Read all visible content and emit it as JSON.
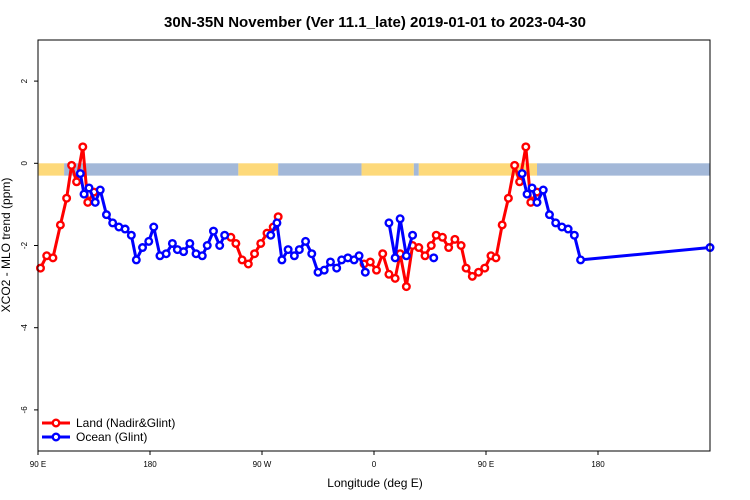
{
  "chart_data": {
    "type": "line",
    "title": "30N-35N November (Ver 11.1_late)   2019-01-01 to 2023-04-30",
    "xlabel": "Longitude (deg E)",
    "ylabel": "XCO2 - MLO trend (ppm)",
    "xlim": [
      90,
      630
    ],
    "ylim": [
      -7.0,
      3.0
    ],
    "x_ticks": [
      {
        "value": 90,
        "label": "90 E"
      },
      {
        "value": 180,
        "label": "180"
      },
      {
        "value": 270,
        "label": "90 W"
      },
      {
        "value": 360,
        "label": "0"
      },
      {
        "value": 450,
        "label": "90 E"
      },
      {
        "value": 540,
        "label": "180"
      }
    ],
    "y_ticks": [
      {
        "value": 2,
        "label": "2"
      },
      {
        "value": 0,
        "label": "0"
      },
      {
        "value": -2,
        "label": "-2"
      },
      {
        "value": -4,
        "label": "-4"
      },
      {
        "value": -6,
        "label": "-6"
      }
    ],
    "grid": false,
    "legend_position": "bottom-left",
    "land_ocean_strip": {
      "y_range": [
        -0.3,
        0.0
      ],
      "land_color": "#fdd97a",
      "ocean_color": "#a3b8d8",
      "segments": [
        {
          "type": "ocean",
          "x0": 90,
          "x1": 90.5
        },
        {
          "type": "land",
          "x0": 90.5,
          "x1": 111
        },
        {
          "type": "ocean",
          "x0": 111,
          "x1": 251
        },
        {
          "type": "land",
          "x0": 251,
          "x1": 283
        },
        {
          "type": "ocean",
          "x0": 283,
          "x1": 350
        },
        {
          "type": "land",
          "x0": 350,
          "x1": 392
        },
        {
          "type": "ocean",
          "x0": 392,
          "x1": 396
        },
        {
          "type": "land",
          "x0": 396,
          "x1": 491
        },
        {
          "type": "ocean",
          "x0": 491,
          "x1": 630
        }
      ]
    },
    "series": [
      {
        "name": "Land (Nadir&Glint)",
        "color": "#ff0000",
        "segments": [
          [
            [
              92,
              -2.55
            ],
            [
              97,
              -2.25
            ],
            [
              102,
              -2.3
            ],
            [
              108,
              -1.5
            ],
            [
              113,
              -0.85
            ],
            [
              117,
              -0.05
            ],
            [
              121,
              -0.45
            ],
            [
              126,
              0.4
            ],
            [
              130,
              -0.95
            ],
            [
              135,
              -0.7
            ]
          ],
          [
            [
              245,
              -1.8
            ],
            [
              249,
              -1.95
            ],
            [
              254,
              -2.35
            ],
            [
              259,
              -2.45
            ],
            [
              264,
              -2.2
            ],
            [
              269,
              -1.95
            ],
            [
              274,
              -1.7
            ],
            [
              279,
              -1.55
            ],
            [
              283,
              -1.3
            ]
          ],
          [
            [
              352,
              -2.45
            ],
            [
              357,
              -2.4
            ],
            [
              362,
              -2.6
            ],
            [
              367,
              -2.2
            ],
            [
              372,
              -2.7
            ],
            [
              377,
              -2.8
            ],
            [
              381,
              -2.2
            ],
            [
              386,
              -3.0
            ],
            [
              391,
              -2.0
            ],
            [
              396,
              -2.05
            ],
            [
              401,
              -2.25
            ],
            [
              406,
              -2.0
            ],
            [
              410,
              -1.75
            ],
            [
              415,
              -1.8
            ],
            [
              420,
              -2.05
            ],
            [
              425,
              -1.85
            ],
            [
              430,
              -2.0
            ],
            [
              434,
              -2.55
            ],
            [
              439,
              -2.75
            ],
            [
              444,
              -2.65
            ],
            [
              449,
              -2.55
            ],
            [
              454,
              -2.25
            ],
            [
              458,
              -2.3
            ],
            [
              463,
              -1.5
            ],
            [
              468,
              -0.85
            ],
            [
              473,
              -0.05
            ],
            [
              477,
              -0.45
            ],
            [
              482,
              0.4
            ],
            [
              486,
              -0.95
            ],
            [
              491,
              -0.7
            ]
          ]
        ]
      },
      {
        "name": "Ocean (Glint)",
        "color": "#0000ff",
        "segments": [
          [
            [
              124,
              -0.25
            ],
            [
              127,
              -0.75
            ],
            [
              131,
              -0.6
            ],
            [
              136,
              -0.95
            ],
            [
              140,
              -0.65
            ],
            [
              145,
              -1.25
            ],
            [
              150,
              -1.45
            ],
            [
              155,
              -1.55
            ],
            [
              160,
              -1.6
            ],
            [
              165,
              -1.75
            ],
            [
              169,
              -2.35
            ],
            [
              174,
              -2.05
            ],
            [
              179,
              -1.9
            ],
            [
              183,
              -1.55
            ],
            [
              188,
              -2.25
            ],
            [
              193,
              -2.2
            ],
            [
              198,
              -1.95
            ],
            [
              202,
              -2.1
            ],
            [
              207,
              -2.15
            ],
            [
              212,
              -1.95
            ],
            [
              217,
              -2.2
            ],
            [
              222,
              -2.25
            ],
            [
              226,
              -2.0
            ],
            [
              231,
              -1.65
            ],
            [
              236,
              -2.0
            ],
            [
              240,
              -1.75
            ]
          ],
          [
            [
              277,
              -1.75
            ],
            [
              282,
              -1.45
            ],
            [
              286,
              -2.35
            ],
            [
              291,
              -2.1
            ],
            [
              296,
              -2.25
            ],
            [
              300,
              -2.1
            ],
            [
              305,
              -1.9
            ],
            [
              310,
              -2.2
            ],
            [
              315,
              -2.65
            ],
            [
              320,
              -2.6
            ],
            [
              325,
              -2.4
            ],
            [
              330,
              -2.55
            ],
            [
              334,
              -2.35
            ],
            [
              339,
              -2.3
            ],
            [
              344,
              -2.35
            ],
            [
              348,
              -2.25
            ],
            [
              353,
              -2.65
            ]
          ],
          [
            [
              372,
              -1.45
            ],
            [
              377,
              -2.3
            ],
            [
              381,
              -1.35
            ],
            [
              386,
              -2.25
            ],
            [
              391,
              -1.75
            ]
          ],
          [
            [
              408,
              -2.3
            ]
          ],
          [
            [
              479,
              -0.25
            ],
            [
              483,
              -0.75
            ],
            [
              487,
              -0.6
            ],
            [
              491,
              -0.95
            ],
            [
              496,
              -0.65
            ],
            [
              501,
              -1.25
            ],
            [
              506,
              -1.45
            ],
            [
              511,
              -1.55
            ],
            [
              516,
              -1.6
            ],
            [
              521,
              -1.75
            ],
            [
              526,
              -2.35
            ],
            [
              630,
              -2.05
            ]
          ]
        ]
      }
    ]
  }
}
